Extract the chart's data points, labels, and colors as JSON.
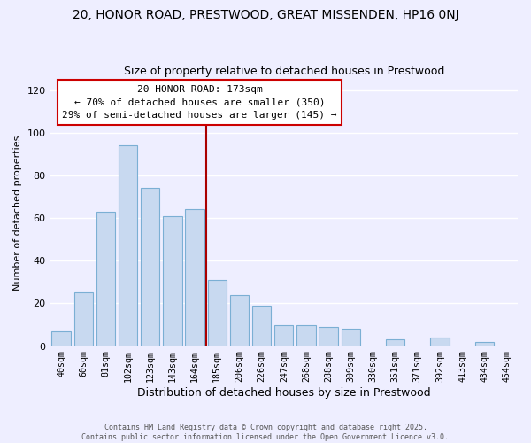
{
  "title": "20, HONOR ROAD, PRESTWOOD, GREAT MISSENDEN, HP16 0NJ",
  "subtitle": "Size of property relative to detached houses in Prestwood",
  "xlabel": "Distribution of detached houses by size in Prestwood",
  "ylabel": "Number of detached properties",
  "bar_labels": [
    "40sqm",
    "60sqm",
    "81sqm",
    "102sqm",
    "123sqm",
    "143sqm",
    "164sqm",
    "185sqm",
    "206sqm",
    "226sqm",
    "247sqm",
    "268sqm",
    "288sqm",
    "309sqm",
    "330sqm",
    "351sqm",
    "371sqm",
    "392sqm",
    "413sqm",
    "434sqm",
    "454sqm"
  ],
  "bar_values": [
    7,
    25,
    63,
    94,
    74,
    61,
    64,
    31,
    24,
    19,
    10,
    10,
    9,
    8,
    0,
    3,
    0,
    4,
    0,
    2,
    0
  ],
  "bar_color": "#c8d9f0",
  "bar_edge_color": "#7bafd4",
  "ylim": [
    0,
    125
  ],
  "yticks": [
    0,
    20,
    40,
    60,
    80,
    100,
    120
  ],
  "vline_color": "#aa0000",
  "annotation_title": "20 HONOR ROAD: 173sqm",
  "annotation_line1": "← 70% of detached houses are smaller (350)",
  "annotation_line2": "29% of semi-detached houses are larger (145) →",
  "annotation_box_color": "#ffffff",
  "annotation_box_edge": "#cc0000",
  "footer1": "Contains HM Land Registry data © Crown copyright and database right 2025.",
  "footer2": "Contains public sector information licensed under the Open Government Licence v3.0.",
  "background_color": "#eeeeff",
  "grid_color": "#ffffff",
  "title_fontsize": 10,
  "subtitle_fontsize": 9,
  "annotation_fontsize": 8,
  "ylabel_fontsize": 8,
  "xlabel_fontsize": 9
}
